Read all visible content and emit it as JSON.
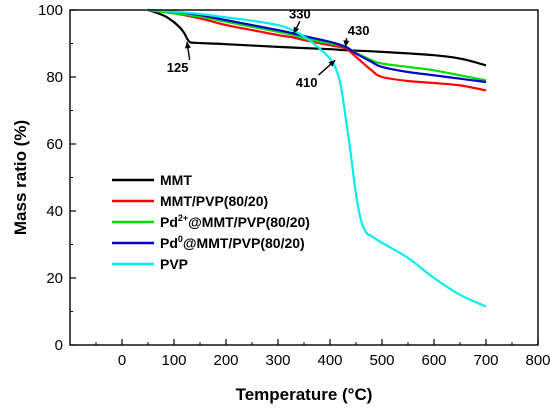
{
  "chart_data": {
    "type": "line",
    "xlabel": "Temperature (°C)",
    "ylabel": "Mass ratio (%)",
    "xlim": [
      -100,
      800
    ],
    "ylim": [
      0,
      100
    ],
    "xticks": [
      0,
      100,
      200,
      300,
      400,
      500,
      600,
      700,
      800
    ],
    "yticks": [
      0,
      20,
      40,
      60,
      80,
      100
    ],
    "grid": false,
    "legend_position": "lower-left",
    "series": [
      {
        "name": "MMT",
        "legend_main": "MMT",
        "color": "#000000",
        "x": [
          50,
          70,
          90,
          110,
          120,
          125,
          130,
          140,
          200,
          300,
          400,
          430,
          500,
          600,
          650,
          700
        ],
        "y": [
          100,
          99,
          97.5,
          95,
          93,
          91.5,
          90.5,
          90.2,
          89.8,
          89,
          88.3,
          88,
          87.5,
          86.5,
          85.5,
          83.5
        ]
      },
      {
        "name": "MMT/PVP(80/20)",
        "legend_main": "MMT/PVP(80/20)",
        "color": "#ff0000",
        "x": [
          50,
          100,
          150,
          200,
          250,
          300,
          330,
          350,
          400,
          430,
          450,
          480,
          500,
          550,
          600,
          650,
          700
        ],
        "y": [
          100,
          99,
          97.5,
          95.5,
          94,
          92.5,
          91.8,
          91,
          89.5,
          88.5,
          86,
          82,
          80,
          78.8,
          78.2,
          77.5,
          76
        ]
      },
      {
        "name": "Pd2+@MMT/PVP(80/20)",
        "legend_main": "Pd",
        "legend_sup": "2+",
        "legend_rest": "@MMT/PVP(80/20)",
        "color": "#00dd00",
        "x": [
          50,
          100,
          150,
          200,
          250,
          300,
          330,
          350,
          400,
          430,
          450,
          480,
          500,
          550,
          600,
          650,
          700
        ],
        "y": [
          100,
          99,
          98,
          96.5,
          95,
          93.5,
          92.5,
          91.5,
          90,
          89,
          87.2,
          85,
          84,
          83,
          82,
          80.5,
          79
        ]
      },
      {
        "name": "Pd0@MMT/PVP(80/20)",
        "legend_main": "Pd",
        "legend_sup": "0",
        "legend_rest": "@MMT/PVP(80/20)",
        "color": "#0000cc",
        "x": [
          50,
          100,
          150,
          200,
          250,
          300,
          330,
          350,
          400,
          430,
          450,
          480,
          500,
          550,
          600,
          650,
          700
        ],
        "y": [
          100,
          99.5,
          98.5,
          97,
          95.5,
          94,
          93,
          92.2,
          90.5,
          89,
          87,
          84.5,
          83,
          81.5,
          80.5,
          79.5,
          78.5
        ]
      },
      {
        "name": "PVP",
        "legend_main": "PVP",
        "color": "#00eeee",
        "x": [
          50,
          100,
          150,
          200,
          250,
          300,
          320,
          340,
          360,
          380,
          400,
          410,
          420,
          430,
          440,
          450,
          460,
          470,
          480,
          500,
          550,
          600,
          650,
          700
        ],
        "y": [
          100,
          99.5,
          98.8,
          97.8,
          96.8,
          95.5,
          94.5,
          93,
          91,
          88.5,
          85.5,
          83,
          78,
          68,
          57,
          45,
          37,
          33.5,
          32.5,
          30.5,
          26,
          20,
          15,
          11.5
        ]
      }
    ],
    "annotations": [
      {
        "text": "125",
        "x": 125,
        "y": 90.5,
        "label_x": 107,
        "label_y": 81.5
      },
      {
        "text": "330",
        "x": 330,
        "y": 93,
        "label_x": 342,
        "label_y": 97.5
      },
      {
        "text": "430",
        "x": 430,
        "y": 89,
        "label_x": 455,
        "label_y": 92.5
      },
      {
        "text": "410",
        "x": 410,
        "y": 85,
        "label_x": 355,
        "label_y": 77
      }
    ]
  }
}
